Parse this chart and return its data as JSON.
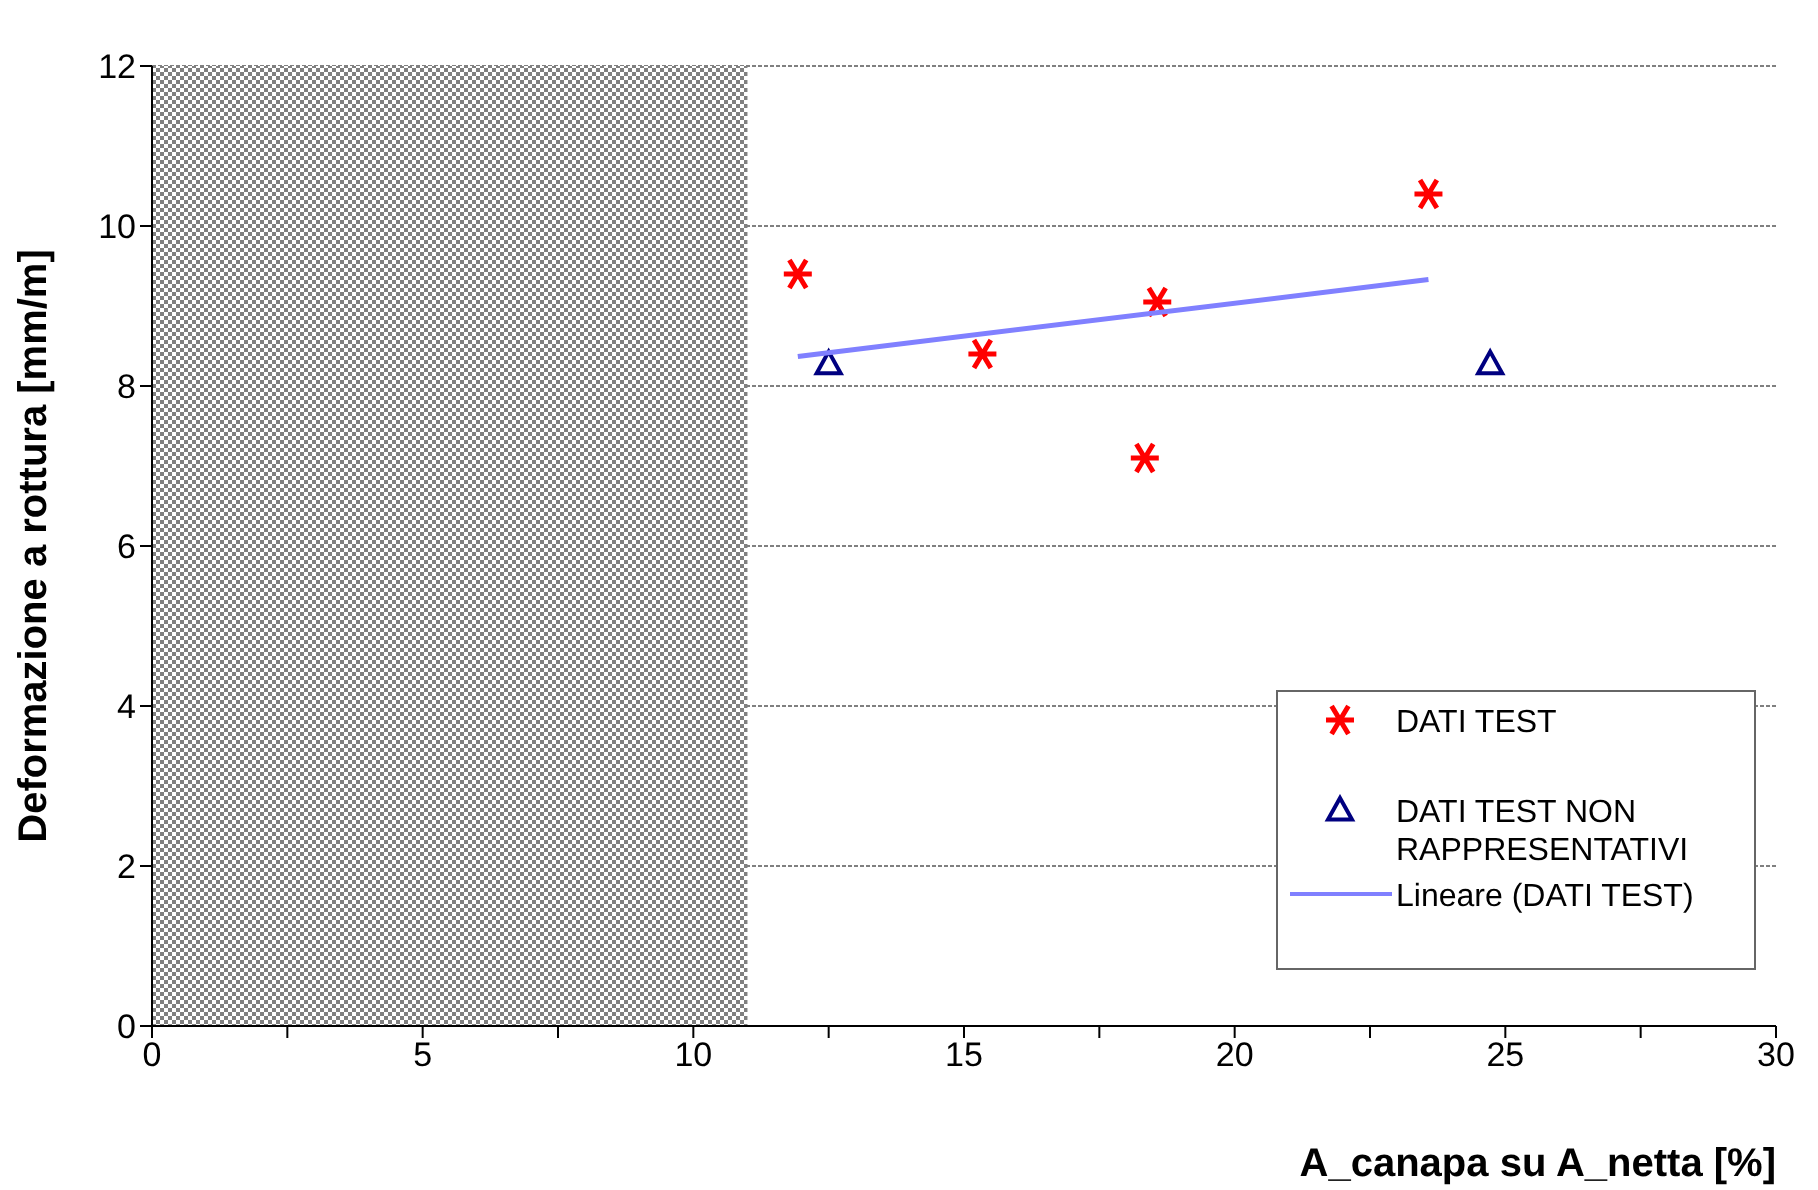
{
  "chart_data": {
    "type": "scatter",
    "xlabel": "A_canapa su A_netta [%]",
    "ylabel": "Deformazione a rottura [mm/m]",
    "xlim": [
      0,
      30
    ],
    "xticks": [
      0,
      {
        "value": 2.5,
        "label": null
      },
      5,
      {
        "value": 7.5,
        "label": null
      },
      10,
      {
        "value": 12.5,
        "label": null
      },
      15,
      {
        "value": 17.5,
        "label": null
      },
      20,
      {
        "value": 22.5,
        "label": null
      },
      25,
      {
        "value": 27.5,
        "label": null
      },
      30
    ],
    "ylim": [
      0,
      12
    ],
    "yticks": [
      0,
      2,
      4,
      6,
      8,
      10,
      12
    ],
    "grid": "y",
    "legend": "bottom right",
    "bands": [
      {
        "axis": "x",
        "from": 0,
        "to": 11,
        "color": "#808080"
      }
    ],
    "series": [
      {
        "name": "DATI TEST",
        "color": "#ff0000",
        "marker": "cross",
        "x": [
          11.93,
          15.34,
          18.34,
          18.57,
          23.58
        ],
        "values": [
          9.4,
          8.4,
          7.1,
          9.05,
          10.4
        ]
      },
      {
        "name": "DATI TEST NON RAPPRESENTATIVI",
        "color": "#000080",
        "marker": "triangle",
        "x": [
          12.5,
          24.72
        ],
        "values": [
          8.28,
          8.28
        ]
      },
      {
        "name": "Lineare (DATI TEST)",
        "type": "line",
        "color": "#8080ff",
        "marker": "none",
        "x": [
          11.93,
          23.58
        ],
        "values": [
          8.37,
          9.33
        ]
      }
    ]
  }
}
